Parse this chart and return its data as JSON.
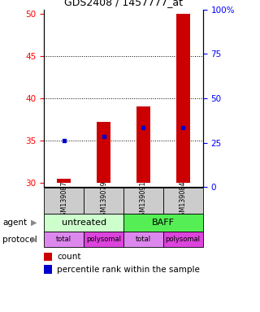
{
  "title": "GDS2408 / 1457777_at",
  "samples": [
    "GSM139087",
    "GSM139079",
    "GSM139091",
    "GSM139084"
  ],
  "bar_bottoms": [
    30,
    30,
    30,
    30
  ],
  "bar_tops": [
    30.5,
    37.2,
    39.0,
    50.0
  ],
  "blue_markers": [
    35.0,
    35.5,
    36.5,
    36.5
  ],
  "ylim_left": [
    29.5,
    50.5
  ],
  "yticks_left": [
    30,
    35,
    40,
    45,
    50
  ],
  "right_ticks": [
    0,
    25,
    50,
    75,
    100
  ],
  "right_tick_labels": [
    "0",
    "25",
    "50",
    "75",
    "100%"
  ],
  "bar_color": "#cc0000",
  "marker_color": "#0000cc",
  "agent_labels": [
    "untreated",
    "BAFF"
  ],
  "agent_colors": [
    "#ccffcc",
    "#55ee55"
  ],
  "protocol_labels": [
    "total",
    "polysomal",
    "total",
    "polysomal"
  ],
  "protocol_colors_even": "#dd88ee",
  "protocol_colors_odd": "#dd44dd",
  "sample_box_color": "#cccccc",
  "legend_count_color": "#cc0000",
  "legend_pct_color": "#0000cc",
  "bar_width": 0.35,
  "grid_ticks": [
    35,
    40,
    45
  ]
}
